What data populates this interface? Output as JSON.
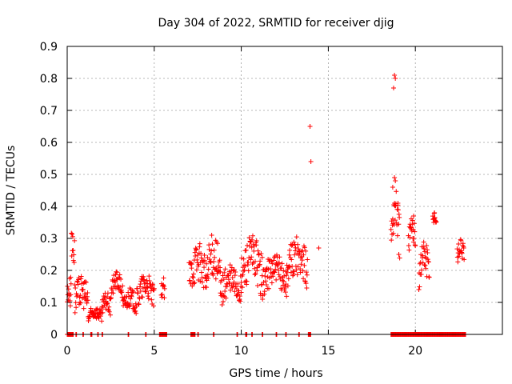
{
  "chart_data": {
    "type": "scatter",
    "title": "Day 304 of 2022, SRMTID for receiver djig",
    "xlabel": "GPS time / hours",
    "ylabel": "SRMTID / TECUs",
    "xlim": [
      0,
      25
    ],
    "ylim": [
      0,
      0.9
    ],
    "xticks": [
      "0",
      "5",
      "10",
      "15",
      "20"
    ],
    "yticks": [
      "0",
      "0.1",
      "0.2",
      "0.3",
      "0.4",
      "0.5",
      "0.6",
      "0.7",
      "0.8",
      "0.9"
    ],
    "grid": true,
    "marker": "+",
    "color": "#ff0000",
    "segments": [
      {
        "start": 0.0,
        "end": 0.2,
        "base": 0.13,
        "amp": 0.03,
        "spread": 0.04
      },
      {
        "start": 0.2,
        "end": 0.45,
        "base": 0.25,
        "amp": 0.1,
        "spread": 0.08
      },
      {
        "start": 0.45,
        "end": 1.2,
        "base": 0.12,
        "amp": 0.03,
        "spread": 0.05
      },
      {
        "start": 1.2,
        "end": 2.0,
        "base": 0.06,
        "amp": 0.02,
        "spread": 0.02
      },
      {
        "start": 2.0,
        "end": 2.5,
        "base": 0.09,
        "amp": 0.03,
        "spread": 0.03
      },
      {
        "start": 2.5,
        "end": 3.2,
        "base": 0.15,
        "amp": 0.04,
        "spread": 0.03
      },
      {
        "start": 3.2,
        "end": 4.0,
        "base": 0.1,
        "amp": 0.03,
        "spread": 0.03
      },
      {
        "start": 4.0,
        "end": 5.0,
        "base": 0.13,
        "amp": 0.05,
        "spread": 0.04
      },
      {
        "start": 5.4,
        "end": 5.6,
        "base": 0.14,
        "amp": 0.03,
        "spread": 0.03
      },
      {
        "start": 7.0,
        "end": 8.0,
        "base": 0.2,
        "amp": 0.06,
        "spread": 0.06
      },
      {
        "start": 8.0,
        "end": 8.8,
        "base": 0.21,
        "amp": 0.08,
        "spread": 0.07
      },
      {
        "start": 8.8,
        "end": 10.0,
        "base": 0.15,
        "amp": 0.04,
        "spread": 0.05
      },
      {
        "start": 10.0,
        "end": 11.2,
        "base": 0.21,
        "amp": 0.07,
        "spread": 0.07
      },
      {
        "start": 11.2,
        "end": 12.6,
        "base": 0.18,
        "amp": 0.05,
        "spread": 0.05
      },
      {
        "start": 12.6,
        "end": 13.8,
        "base": 0.22,
        "amp": 0.05,
        "spread": 0.06
      },
      {
        "start": 18.6,
        "end": 19.1,
        "base": 0.35,
        "amp": 0.1,
        "spread": 0.07
      },
      {
        "start": 19.6,
        "end": 20.0,
        "base": 0.31,
        "amp": 0.04,
        "spread": 0.04
      },
      {
        "start": 20.2,
        "end": 20.8,
        "base": 0.22,
        "amp": 0.06,
        "spread": 0.06
      },
      {
        "start": 21.0,
        "end": 21.2,
        "base": 0.36,
        "amp": 0.02,
        "spread": 0.02
      },
      {
        "start": 22.4,
        "end": 22.8,
        "base": 0.26,
        "amp": 0.03,
        "spread": 0.03
      }
    ],
    "outliers": [
      {
        "x": 13.95,
        "y": 0.65
      },
      {
        "x": 14.0,
        "y": 0.54
      },
      {
        "x": 14.45,
        "y": 0.27
      },
      {
        "x": 18.8,
        "y": 0.81
      },
      {
        "x": 18.85,
        "y": 0.8
      },
      {
        "x": 18.75,
        "y": 0.77
      },
      {
        "x": 18.8,
        "y": 0.49
      },
      {
        "x": 18.85,
        "y": 0.48
      },
      {
        "x": 18.7,
        "y": 0.46
      },
      {
        "x": 19.0,
        "y": 0.41
      },
      {
        "x": 19.05,
        "y": 0.25
      },
      {
        "x": 21.1,
        "y": 0.38
      },
      {
        "x": 19.9,
        "y": 0.37
      }
    ],
    "zero_ranges": [
      [
        0.0,
        0.35
      ],
      [
        0.5,
        0.55
      ],
      [
        0.9,
        0.95
      ],
      [
        1.35,
        1.45
      ],
      [
        1.75,
        1.8
      ],
      [
        2.0,
        2.05
      ],
      [
        3.5,
        3.55
      ],
      [
        4.5,
        4.55
      ],
      [
        5.3,
        5.75
      ],
      [
        7.1,
        7.35
      ],
      [
        7.5,
        7.55
      ],
      [
        8.4,
        8.45
      ],
      [
        9.75,
        9.8
      ],
      [
        10.25,
        10.35
      ],
      [
        10.6,
        10.65
      ],
      [
        11.2,
        11.25
      ],
      [
        12.0,
        12.05
      ],
      [
        12.55,
        12.6
      ],
      [
        13.3,
        13.35
      ],
      [
        13.85,
        14.0
      ],
      [
        18.6,
        20.4
      ],
      [
        20.4,
        22.9
      ]
    ]
  }
}
